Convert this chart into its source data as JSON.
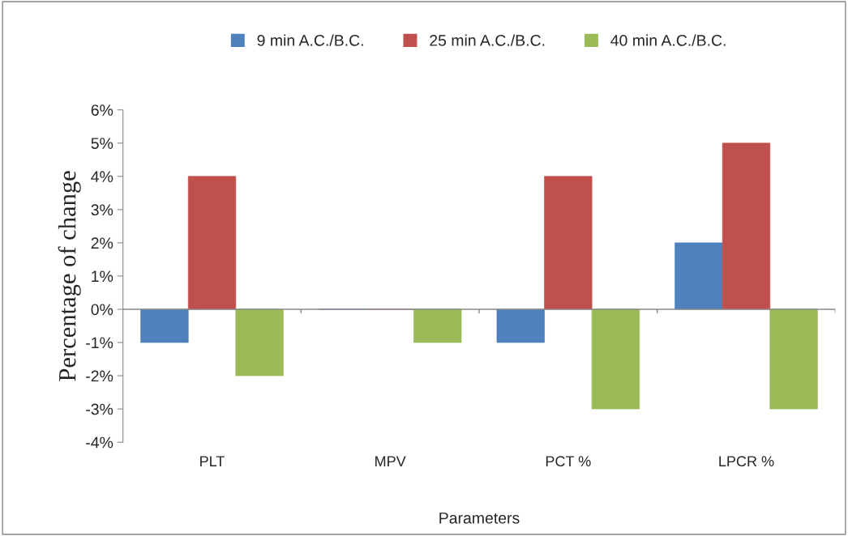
{
  "chart_data": {
    "type": "bar",
    "xlabel": "Parameters",
    "ylabel": "Percentage of change",
    "categories": [
      "PLT",
      "MPV",
      "PCT %",
      "LPCR %"
    ],
    "series": [
      {
        "name": "9 min A.C./B.C.",
        "color": "#4f81bd",
        "values": [
          -1,
          0,
          -1,
          2
        ]
      },
      {
        "name": "25 min A.C./B.C.",
        "color": "#c0504d",
        "values": [
          4,
          0,
          4,
          5
        ]
      },
      {
        "name": "40 min A.C./B.C.",
        "color": "#9bbb59",
        "values": [
          -2,
          -1,
          -3,
          -3
        ]
      }
    ],
    "ylim": [
      -4,
      6
    ],
    "yticks": [
      {
        "value": -4,
        "label": "-4%"
      },
      {
        "value": -3,
        "label": "-3%"
      },
      {
        "value": -2,
        "label": "-2%"
      },
      {
        "value": -1,
        "label": "-1%"
      },
      {
        "value": 0,
        "label": "0%"
      },
      {
        "value": 1,
        "label": "1%"
      },
      {
        "value": 2,
        "label": "2%"
      },
      {
        "value": 3,
        "label": "3%"
      },
      {
        "value": 4,
        "label": "4%"
      },
      {
        "value": 5,
        "label": "5%"
      },
      {
        "value": 6,
        "label": "6%"
      }
    ],
    "legend": "top"
  }
}
